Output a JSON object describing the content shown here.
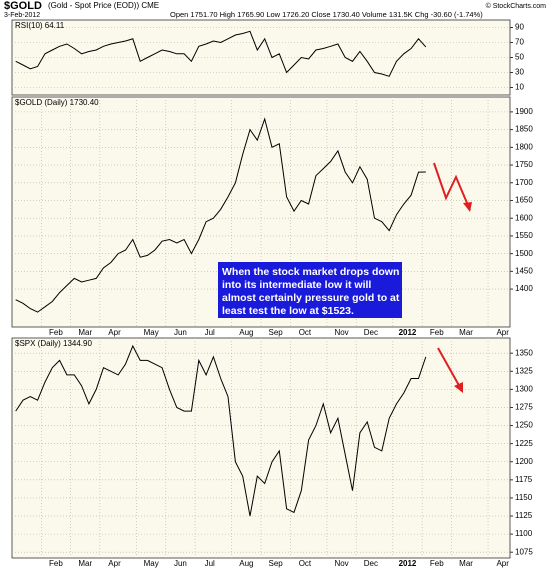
{
  "header": {
    "title": "$GOLD",
    "subtitle": "(Gold - Spot Price (EOD)) CME",
    "date": "3-Feb-2012",
    "quote": "Open 1751.70 High 1765.90 Low 1726.20 Close 1730.40 Volume 131.5K Chg -30.60 (-1.74%)",
    "credit": "© StockCharts.com"
  },
  "annotation": [
    "When the stock market drops down",
    "into its intermediate low it will",
    "almost certainly pressure gold to at",
    "least test the low at $1523."
  ],
  "chart_data": [
    {
      "type": "line",
      "title": "RSI(10) 64.11",
      "ylim": [
        0,
        100
      ],
      "yticks": [
        10,
        30,
        50,
        70,
        90
      ],
      "grid": true,
      "series": [
        {
          "color": "#000000",
          "values": [
            45,
            40,
            35,
            38,
            55,
            60,
            65,
            68,
            62,
            55,
            58,
            60,
            65,
            68,
            70,
            72,
            75,
            45,
            50,
            55,
            60,
            58,
            55,
            55,
            45,
            65,
            68,
            72,
            70,
            75,
            80,
            82,
            85,
            60,
            75,
            50,
            55,
            30,
            40,
            50,
            48,
            60,
            62,
            65,
            68,
            50,
            45,
            58,
            45,
            30,
            28,
            25,
            45,
            55,
            62,
            75,
            64.11,
            null,
            null,
            null,
            null,
            null,
            null,
            null,
            null,
            null,
            null,
            null
          ]
        }
      ]
    },
    {
      "type": "line",
      "title": "$GOLD (Daily) 1730.40",
      "ylim": [
        1293,
        1942
      ],
      "yticks": [
        1400,
        1450,
        1500,
        1550,
        1600,
        1650,
        1700,
        1750,
        1800,
        1850,
        1900
      ],
      "grid": true,
      "categories": [
        null,
        null,
        null,
        null,
        "Feb",
        null,
        null,
        null,
        "Mar",
        null,
        null,
        null,
        "Apr",
        null,
        null,
        null,
        null,
        "May",
        null,
        null,
        null,
        "Jun",
        null,
        null,
        null,
        "Jul",
        null,
        null,
        null,
        null,
        "Aug",
        null,
        null,
        null,
        "Sep",
        null,
        null,
        null,
        "Oct",
        null,
        null,
        null,
        null,
        "Nov",
        null,
        null,
        null,
        "Dec",
        null,
        null,
        null,
        null,
        "2012",
        null,
        null,
        null,
        "Feb",
        null,
        null,
        null,
        "Mar",
        null,
        null,
        null,
        null,
        "Apr",
        null,
        null
      ],
      "series": [
        {
          "color": "#000000",
          "values": [
            1370,
            1360,
            1345,
            1335,
            1350,
            1365,
            1390,
            1410,
            1430,
            1420,
            1425,
            1430,
            1460,
            1475,
            1500,
            1510,
            1540,
            1490,
            1495,
            1510,
            1535,
            1540,
            1530,
            1540,
            1500,
            1540,
            1590,
            1600,
            1625,
            1660,
            1700,
            1780,
            1850,
            1820,
            1880,
            1800,
            1810,
            1660,
            1620,
            1650,
            1640,
            1720,
            1740,
            1760,
            1790,
            1730,
            1700,
            1745,
            1710,
            1600,
            1590,
            1565,
            1610,
            1640,
            1665,
            1730,
            1730.4,
            null,
            null,
            null,
            null,
            null,
            null,
            null,
            null,
            null,
            null,
            null
          ]
        }
      ]
    },
    {
      "type": "line",
      "title": "$SPX (Daily) 1344.90",
      "ylim": [
        1067,
        1371
      ],
      "yticks": [
        1075,
        1100,
        1125,
        1150,
        1175,
        1200,
        1225,
        1250,
        1275,
        1300,
        1325,
        1350
      ],
      "grid": true,
      "categories": [
        null,
        null,
        null,
        null,
        "Feb",
        null,
        null,
        null,
        "Mar",
        null,
        null,
        null,
        "Apr",
        null,
        null,
        null,
        null,
        "May",
        null,
        null,
        null,
        "Jun",
        null,
        null,
        null,
        "Jul",
        null,
        null,
        null,
        null,
        "Aug",
        null,
        null,
        null,
        "Sep",
        null,
        null,
        null,
        "Oct",
        null,
        null,
        null,
        null,
        "Nov",
        null,
        null,
        null,
        "Dec",
        null,
        null,
        null,
        null,
        "2012",
        null,
        null,
        null,
        "Feb",
        null,
        null,
        null,
        "Mar",
        null,
        null,
        null,
        null,
        "Apr",
        null,
        null
      ],
      "series": [
        {
          "color": "#000000",
          "values": [
            1270,
            1285,
            1290,
            1285,
            1310,
            1330,
            1340,
            1320,
            1320,
            1305,
            1280,
            1300,
            1330,
            1325,
            1320,
            1335,
            1360,
            1340,
            1340,
            1335,
            1330,
            1300,
            1275,
            1270,
            1270,
            1340,
            1320,
            1345,
            1315,
            1290,
            1200,
            1180,
            1125,
            1180,
            1170,
            1200,
            1215,
            1135,
            1130,
            1160,
            1230,
            1250,
            1280,
            1240,
            1260,
            1210,
            1160,
            1240,
            1255,
            1220,
            1215,
            1260,
            1280,
            1295,
            1315,
            1315,
            1344.9,
            null,
            null,
            null,
            null,
            null,
            null,
            null,
            null,
            null,
            null,
            null
          ]
        }
      ]
    }
  ]
}
